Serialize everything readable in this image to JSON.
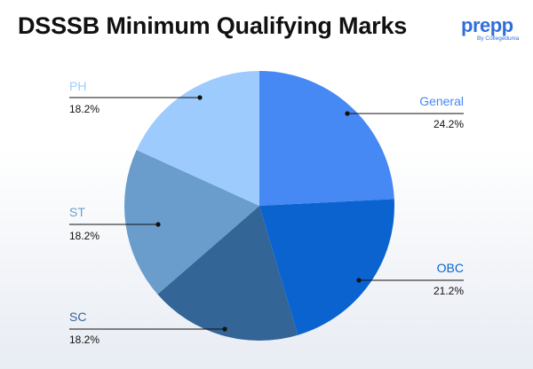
{
  "header": {
    "title": "DSSSB Minimum Qualifying Marks"
  },
  "brand": {
    "name": "prepp",
    "tagline": "By Collegedunia",
    "color": "#2f6fdb"
  },
  "chart_data": {
    "type": "pie",
    "title": "DSSSB Minimum Qualifying Marks",
    "legend": "none",
    "slices": [
      {
        "label": "General",
        "value": 24.2,
        "display": "24.2%",
        "color": "#4688f4"
      },
      {
        "label": "OBC",
        "value": 21.2,
        "display": "21.2%",
        "color": "#0a63cf"
      },
      {
        "label": "SC",
        "value": 18.2,
        "display": "18.2%",
        "color": "#336597"
      },
      {
        "label": "ST",
        "value": 18.2,
        "display": "18.2%",
        "color": "#6a9dcc"
      },
      {
        "label": "PH",
        "value": 18.2,
        "display": "18.2%",
        "color": "#9ecbfd"
      }
    ]
  }
}
